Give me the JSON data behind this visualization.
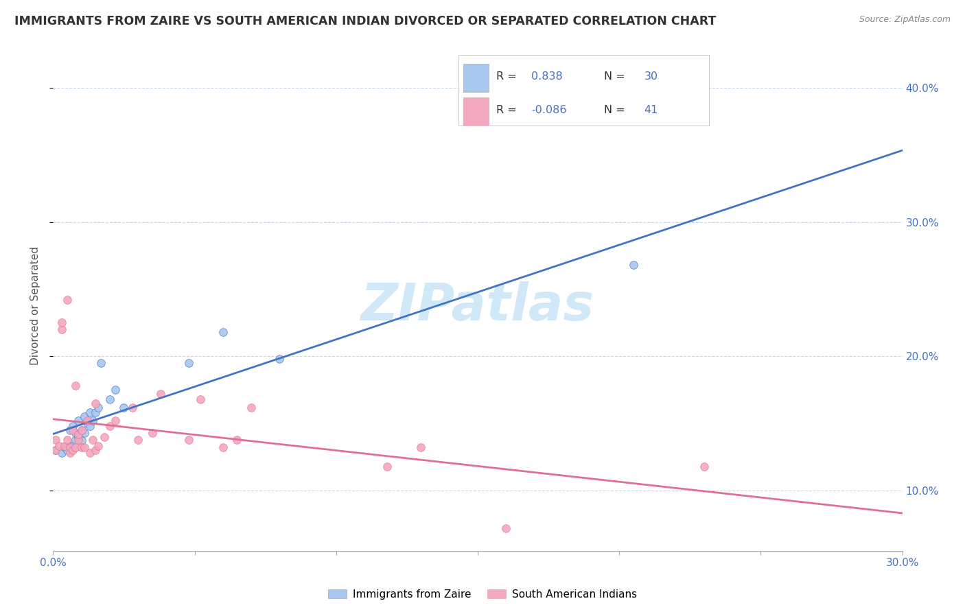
{
  "title": "IMMIGRANTS FROM ZAIRE VS SOUTH AMERICAN INDIAN DIVORCED OR SEPARATED CORRELATION CHART",
  "source": "Source: ZipAtlas.com",
  "ylabel": "Divorced or Separated",
  "xlim": [
    0.0,
    0.3
  ],
  "ylim": [
    0.055,
    0.42
  ],
  "y_ticks": [
    0.1,
    0.2,
    0.3,
    0.4
  ],
  "y_tick_labels": [
    "10.0%",
    "20.0%",
    "30.0%",
    "40.0%"
  ],
  "x_ticks": [
    0.0,
    0.05,
    0.1,
    0.15,
    0.2,
    0.25,
    0.3
  ],
  "x_tick_labels": [
    "0.0%",
    "",
    "",
    "",
    "",
    "",
    "30.0%"
  ],
  "legend_blue_r": "0.838",
  "legend_blue_n": "30",
  "legend_pink_r": "-0.086",
  "legend_pink_n": "41",
  "blue_color": "#a8c8f0",
  "pink_color": "#f4a8be",
  "line_blue": "#4472c4",
  "line_pink": "#e07090",
  "watermark": "ZIPatlas",
  "watermark_color": "#d0e8f8",
  "blue_scatter_x": [
    0.001,
    0.003,
    0.004,
    0.005,
    0.006,
    0.006,
    0.007,
    0.007,
    0.008,
    0.008,
    0.009,
    0.009,
    0.01,
    0.01,
    0.011,
    0.011,
    0.012,
    0.013,
    0.013,
    0.014,
    0.015,
    0.016,
    0.017,
    0.02,
    0.022,
    0.025,
    0.048,
    0.06,
    0.08,
    0.205
  ],
  "blue_scatter_y": [
    0.13,
    0.128,
    0.132,
    0.13,
    0.133,
    0.145,
    0.133,
    0.148,
    0.138,
    0.143,
    0.14,
    0.152,
    0.137,
    0.145,
    0.143,
    0.155,
    0.15,
    0.148,
    0.158,
    0.152,
    0.158,
    0.162,
    0.195,
    0.168,
    0.175,
    0.162,
    0.195,
    0.218,
    0.198,
    0.268
  ],
  "pink_scatter_x": [
    0.001,
    0.001,
    0.002,
    0.003,
    0.003,
    0.004,
    0.005,
    0.005,
    0.006,
    0.006,
    0.007,
    0.007,
    0.008,
    0.008,
    0.009,
    0.009,
    0.01,
    0.01,
    0.011,
    0.012,
    0.013,
    0.014,
    0.015,
    0.015,
    0.016,
    0.018,
    0.02,
    0.022,
    0.028,
    0.03,
    0.035,
    0.038,
    0.048,
    0.052,
    0.06,
    0.065,
    0.07,
    0.118,
    0.13,
    0.16,
    0.23
  ],
  "pink_scatter_y": [
    0.13,
    0.138,
    0.133,
    0.22,
    0.225,
    0.133,
    0.138,
    0.242,
    0.128,
    0.132,
    0.13,
    0.145,
    0.132,
    0.178,
    0.138,
    0.142,
    0.132,
    0.145,
    0.132,
    0.152,
    0.128,
    0.138,
    0.13,
    0.165,
    0.133,
    0.14,
    0.148,
    0.152,
    0.162,
    0.138,
    0.143,
    0.172,
    0.138,
    0.168,
    0.132,
    0.138,
    0.162,
    0.118,
    0.132,
    0.072,
    0.118
  ],
  "bg_color": "#ffffff",
  "grid_color": "#c8d8e8",
  "right_axis_color": "#4472c4",
  "legend_label_blue": "Immigrants from Zaire",
  "legend_label_pink": "South American Indians"
}
